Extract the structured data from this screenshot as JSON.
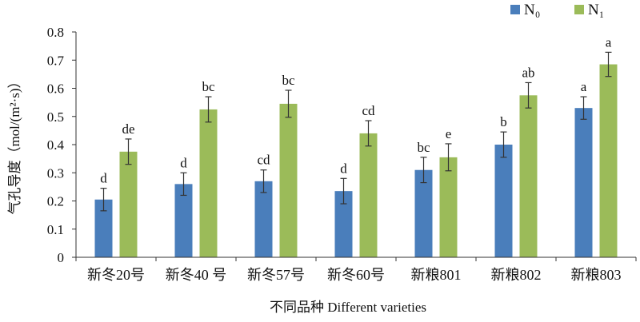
{
  "chart_data": {
    "type": "bar",
    "title": "",
    "ylabel": "气孔导度（mol/(m²·s)）",
    "xlabel": "不同品种 Different varieties",
    "ylim": [
      0,
      0.8
    ],
    "yticks": [
      "0",
      "0.1",
      "0.2",
      "0.3",
      "0.4",
      "0.5",
      "0.6",
      "0.7",
      "0.8"
    ],
    "yticks_values": [
      0,
      0.1,
      0.2,
      0.3,
      0.4,
      0.5,
      0.6,
      0.7,
      0.8
    ],
    "grid": false,
    "legend_position": "top-right",
    "categories": [
      "新冬20号",
      "新冬40 号",
      "新冬57号",
      "新冬60号",
      "新粮801",
      "新粮802",
      "新粮803"
    ],
    "series": [
      {
        "name": "N₀",
        "color": "#4a7ebb",
        "values": [
          0.205,
          0.26,
          0.27,
          0.235,
          0.31,
          0.4,
          0.53
        ],
        "errors": [
          0.04,
          0.04,
          0.04,
          0.045,
          0.045,
          0.045,
          0.04
        ],
        "letters": [
          "d",
          "d",
          "cd",
          "d",
          "bc",
          "b",
          "a"
        ]
      },
      {
        "name": "N₁",
        "color": "#9bbb59",
        "values": [
          0.375,
          0.525,
          0.545,
          0.44,
          0.355,
          0.575,
          0.685
        ],
        "errors": [
          0.045,
          0.045,
          0.048,
          0.045,
          0.048,
          0.045,
          0.043
        ],
        "letters": [
          "de",
          "bc",
          "bc",
          "cd",
          "e",
          "ab",
          "a"
        ]
      }
    ]
  }
}
